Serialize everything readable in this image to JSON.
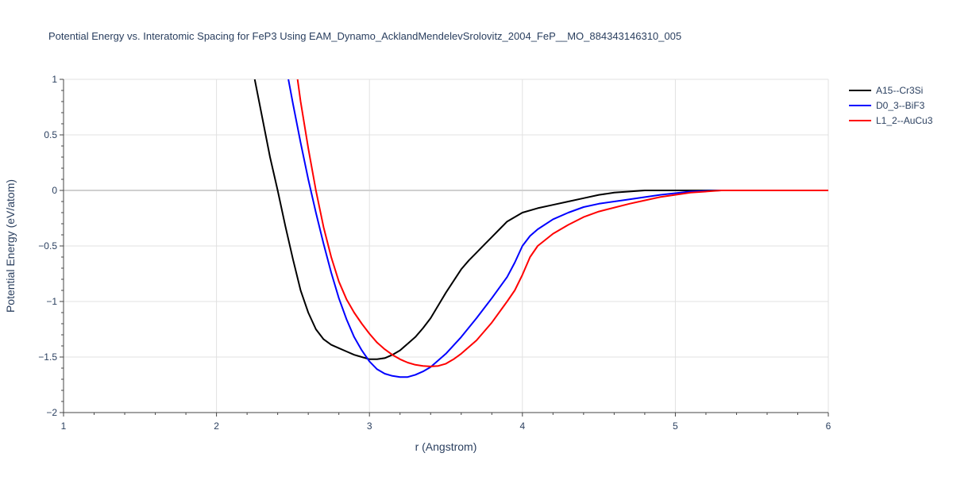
{
  "chart_data": {
    "type": "line",
    "title": "Potential Energy vs. Interatomic Spacing for FeP3 Using EAM_Dynamo_AcklandMendelevSrolovitz_2004_FeP__MO_884343146310_005",
    "xlabel": "r (Angstrom)",
    "ylabel": "Potential Energy (eV/atom)",
    "xlim": [
      1,
      6
    ],
    "ylim": [
      -2,
      1
    ],
    "x_ticks": [
      1,
      2,
      3,
      4,
      5,
      6
    ],
    "x_tick_labels": [
      "1",
      "2",
      "3",
      "4",
      "5",
      "6"
    ],
    "y_ticks": [
      -2,
      -1.5,
      -1,
      -0.5,
      0,
      0.5,
      1
    ],
    "y_tick_labels": [
      "−2",
      "−1.5",
      "−1",
      "−0.5",
      "0",
      "0.5",
      "1"
    ],
    "grid": true,
    "legend_position": "top-right",
    "series": [
      {
        "name": "A15--Cr3Si",
        "color": "#000000",
        "x": [
          2.25,
          2.3,
          2.35,
          2.4,
          2.45,
          2.5,
          2.55,
          2.6,
          2.65,
          2.7,
          2.75,
          2.8,
          2.85,
          2.9,
          2.95,
          3.0,
          3.05,
          3.1,
          3.15,
          3.2,
          3.25,
          3.3,
          3.35,
          3.4,
          3.5,
          3.6,
          3.65,
          3.7,
          3.75,
          3.8,
          3.85,
          3.9,
          3.95,
          4.0,
          4.1,
          4.2,
          4.3,
          4.4,
          4.5,
          4.6,
          4.7,
          4.8,
          5.0,
          5.2,
          5.5,
          6.0
        ],
        "y": [
          1.0,
          0.65,
          0.3,
          0.0,
          -0.32,
          -0.62,
          -0.9,
          -1.1,
          -1.25,
          -1.34,
          -1.39,
          -1.42,
          -1.45,
          -1.48,
          -1.5,
          -1.52,
          -1.52,
          -1.51,
          -1.48,
          -1.44,
          -1.38,
          -1.32,
          -1.24,
          -1.15,
          -0.92,
          -0.71,
          -0.63,
          -0.56,
          -0.49,
          -0.42,
          -0.35,
          -0.28,
          -0.24,
          -0.2,
          -0.16,
          -0.13,
          -0.1,
          -0.07,
          -0.04,
          -0.02,
          -0.01,
          0.0,
          0.0,
          0.0,
          0.0,
          0.0
        ]
      },
      {
        "name": "D0_3--BiF3",
        "color": "#0000ff",
        "x": [
          2.47,
          2.5,
          2.55,
          2.6,
          2.65,
          2.7,
          2.75,
          2.8,
          2.85,
          2.9,
          2.95,
          3.0,
          3.05,
          3.1,
          3.15,
          3.2,
          3.25,
          3.3,
          3.35,
          3.4,
          3.5,
          3.6,
          3.7,
          3.8,
          3.9,
          3.95,
          4.0,
          4.05,
          4.1,
          4.2,
          4.3,
          4.4,
          4.5,
          4.7,
          4.9,
          5.1,
          5.3,
          5.6,
          6.0
        ],
        "y": [
          1.0,
          0.78,
          0.43,
          0.1,
          -0.2,
          -0.48,
          -0.74,
          -0.97,
          -1.16,
          -1.32,
          -1.44,
          -1.54,
          -1.61,
          -1.65,
          -1.67,
          -1.68,
          -1.68,
          -1.66,
          -1.63,
          -1.59,
          -1.47,
          -1.32,
          -1.15,
          -0.97,
          -0.78,
          -0.65,
          -0.5,
          -0.41,
          -0.35,
          -0.26,
          -0.2,
          -0.15,
          -0.12,
          -0.08,
          -0.04,
          -0.01,
          0.0,
          0.0,
          0.0
        ]
      },
      {
        "name": "L1_2--AuCu3",
        "color": "#ff0000",
        "x": [
          2.53,
          2.55,
          2.6,
          2.65,
          2.7,
          2.75,
          2.8,
          2.85,
          2.9,
          2.95,
          3.0,
          3.05,
          3.1,
          3.15,
          3.2,
          3.25,
          3.3,
          3.35,
          3.4,
          3.45,
          3.5,
          3.55,
          3.6,
          3.7,
          3.8,
          3.9,
          3.95,
          4.0,
          4.05,
          4.1,
          4.2,
          4.3,
          4.4,
          4.5,
          4.7,
          4.9,
          5.1,
          5.3,
          5.6,
          6.0
        ],
        "y": [
          1.0,
          0.8,
          0.38,
          0.0,
          -0.33,
          -0.6,
          -0.82,
          -0.98,
          -1.1,
          -1.2,
          -1.29,
          -1.37,
          -1.43,
          -1.48,
          -1.52,
          -1.55,
          -1.57,
          -1.58,
          -1.585,
          -1.58,
          -1.56,
          -1.52,
          -1.47,
          -1.35,
          -1.19,
          -1.0,
          -0.9,
          -0.76,
          -0.6,
          -0.5,
          -0.39,
          -0.31,
          -0.24,
          -0.19,
          -0.12,
          -0.06,
          -0.02,
          0.0,
          0.0,
          0.0
        ]
      }
    ]
  }
}
